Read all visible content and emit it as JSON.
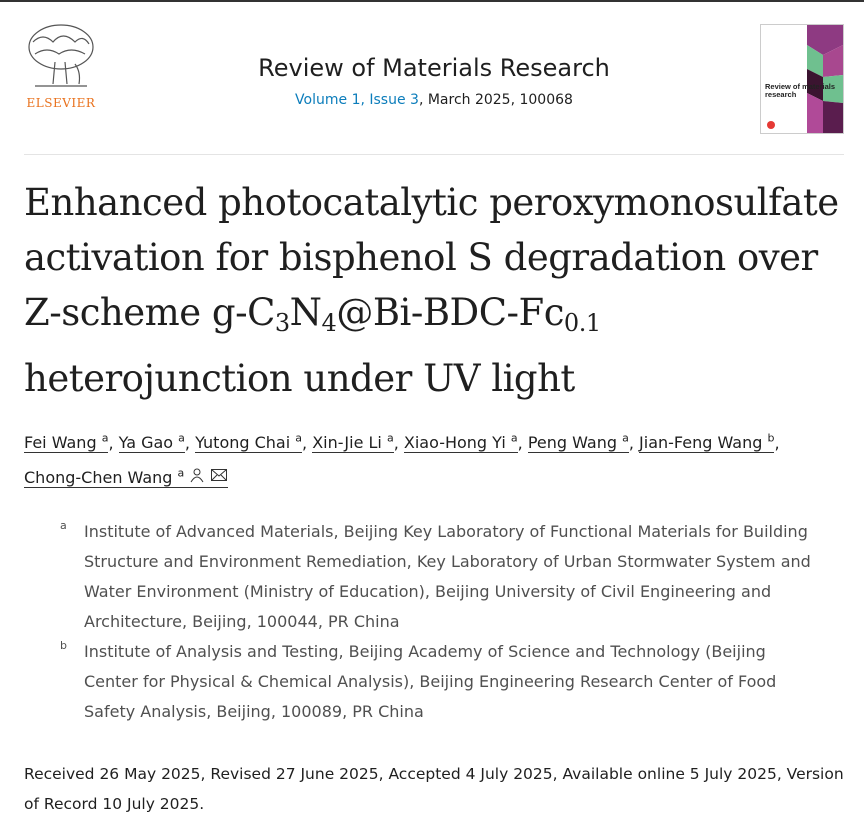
{
  "header": {
    "publisher": "ELSEVIER",
    "journal_title": "Review of Materials Research",
    "volume_issue": "Volume 1, Issue 3",
    "date_id": ", March 2025, 100068",
    "cover_text": "Review of materials research"
  },
  "article": {
    "title_parts": [
      "Enhanced photocatalytic peroxymonosulfate activation for bisphenol S degradation over Z-scheme g-C",
      "3",
      "N",
      "4",
      "@Bi-BDC-Fc",
      "0.1",
      " heterojunction under UV light"
    ]
  },
  "authors": [
    {
      "name": "Fei Wang",
      "aff": "a"
    },
    {
      "name": "Ya Gao",
      "aff": "a"
    },
    {
      "name": "Yutong Chai",
      "aff": "a"
    },
    {
      "name": "Xin-Jie Li",
      "aff": "a"
    },
    {
      "name": "Xiao-Hong Yi",
      "aff": "a"
    },
    {
      "name": "Peng Wang",
      "aff": "a"
    },
    {
      "name": "Jian-Feng Wang",
      "aff": "b"
    },
    {
      "name": "Chong-Chen Wang",
      "aff": "a"
    }
  ],
  "affiliations": [
    {
      "label": "a",
      "text": "Institute of Advanced Materials, Beijing Key Laboratory of Functional Materials for Building Structure and Environment Remediation, Key Laboratory of Urban Stormwater System and Water Environment (Ministry of Education), Beijing University of Civil Engineering and Architecture, Beijing, 100044, PR China"
    },
    {
      "label": "b",
      "text": "Institute of Analysis and Testing, Beijing Academy of Science and Technology (Beijing Center for Physical & Chemical Analysis), Beijing Engineering Research Center of Food Safety Analysis, Beijing, 100089, PR China"
    }
  ],
  "dates": "Received 26 May 2025, Revised 27 June 2025, Accepted 4 July 2025, Available online 5 July 2025, Version of Record 10 July 2025.",
  "colors": {
    "link": "#0c7dbb",
    "elsevier": "#e9711c"
  }
}
